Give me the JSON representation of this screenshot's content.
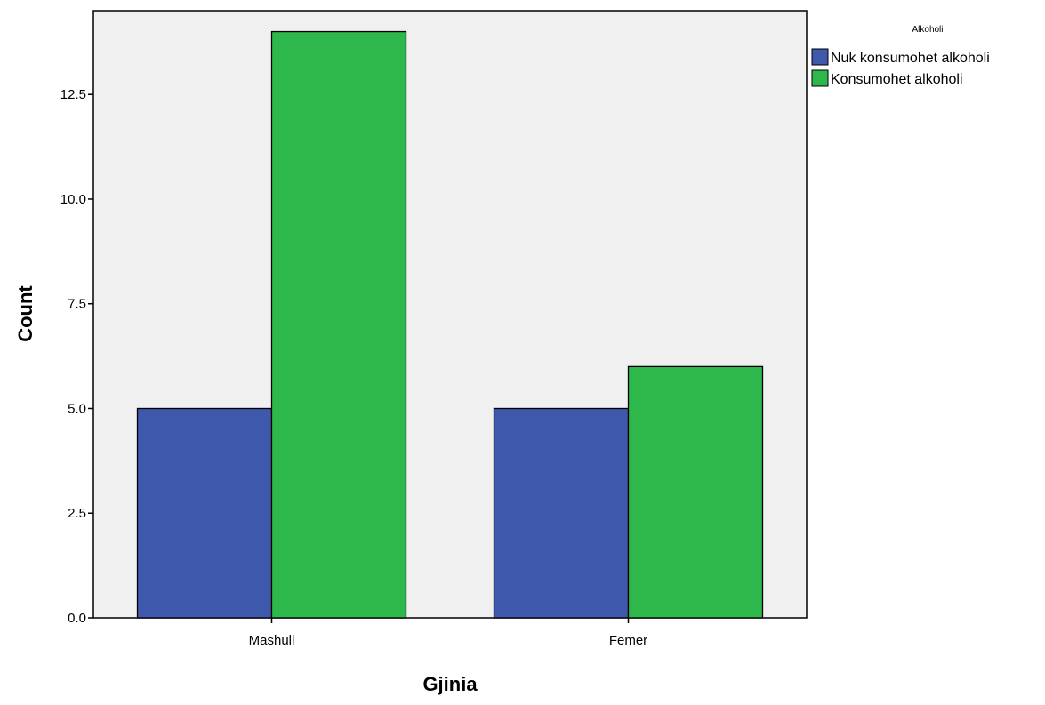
{
  "chart_data": {
    "type": "bar",
    "categories": [
      "Mashull",
      "Femer"
    ],
    "series": [
      {
        "name": "Nuk konsumohet alkoholi",
        "color": "#3e58ac",
        "values": [
          5,
          5
        ]
      },
      {
        "name": "Konsumohet alkoholi",
        "color": "#2eb84b",
        "values": [
          14,
          6
        ]
      }
    ],
    "xlabel": "Gjinia",
    "ylabel": "Count",
    "ylim": [
      0,
      14.5
    ],
    "yticks": [
      "0.0",
      "2.5",
      "5.0",
      "7.5",
      "10.0",
      "12.5"
    ],
    "legend": {
      "title": "Alkoholi",
      "placement": "right"
    },
    "plot_background": "#f0f0f0",
    "grid": false
  }
}
